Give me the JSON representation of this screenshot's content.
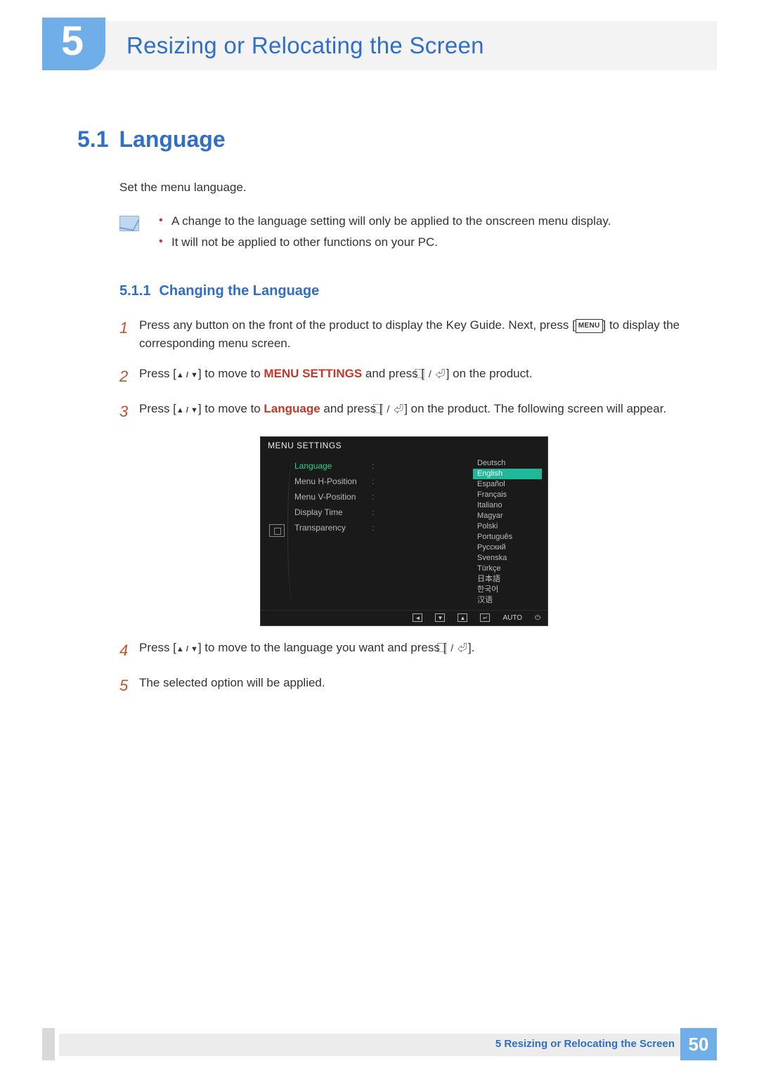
{
  "chapter": {
    "number": "5",
    "title": "Resizing or Relocating the Screen"
  },
  "section": {
    "number": "5.1",
    "title": "Language",
    "intro": "Set the menu language."
  },
  "notes": [
    "A change to the language setting will only be applied to the onscreen menu display.",
    "It will not be applied to other functions on your PC."
  ],
  "subsection": {
    "number": "5.1.1",
    "title": "Changing the Language"
  },
  "steps": {
    "s1": {
      "num": "1",
      "pre": "Press any button on the front of the product to display the Key Guide. Next, press [",
      "btn": "MENU",
      "post": "] to display the corresponding menu screen."
    },
    "s2": {
      "num": "2",
      "a": "Press [",
      "b": "] to move to ",
      "hl": "MENU SETTINGS",
      "c": " and press [",
      "d": "] on the product."
    },
    "s3": {
      "num": "3",
      "a": "Press [",
      "b": "] to move to ",
      "hl": "Language",
      "c": " and press [",
      "d": "] on the product. The following screen will appear."
    },
    "s4": {
      "num": "4",
      "a": "Press [",
      "b": "] to move to the language you want and press [",
      "c": "]."
    },
    "s5": {
      "num": "5",
      "text": "The selected option will be applied."
    }
  },
  "osd": {
    "title": "MENU SETTINGS",
    "background_color": "#1a1a1a",
    "active_color": "#2fd08a",
    "highlight_bg": "#1fb89a",
    "text_color": "#bcbcbc",
    "menu": [
      {
        "label": "Language",
        "active": true
      },
      {
        "label": "Menu H-Position",
        "active": false
      },
      {
        "label": "Menu V-Position",
        "active": false
      },
      {
        "label": "Display Time",
        "active": false
      },
      {
        "label": "Transparency",
        "active": false
      }
    ],
    "languages": [
      "Deutsch",
      "English",
      "Español",
      "Français",
      "Italiano",
      "Magyar",
      "Polski",
      "Português",
      "Русский",
      "Svenska",
      "Türkçe",
      "日本語",
      "한국어",
      "汉语"
    ],
    "selected_language_index": 1,
    "footer": {
      "auto": "AUTO"
    }
  },
  "footer": {
    "text": "5 Resizing or Relocating the Screen",
    "page": "50"
  },
  "colors": {
    "brand_blue": "#2f6fc7",
    "badge_blue": "#6faee8",
    "accent_red": "#c0392b",
    "step_num": "#c0552a",
    "body_text": "#333333",
    "bar_bg": "#f3f3f3"
  }
}
